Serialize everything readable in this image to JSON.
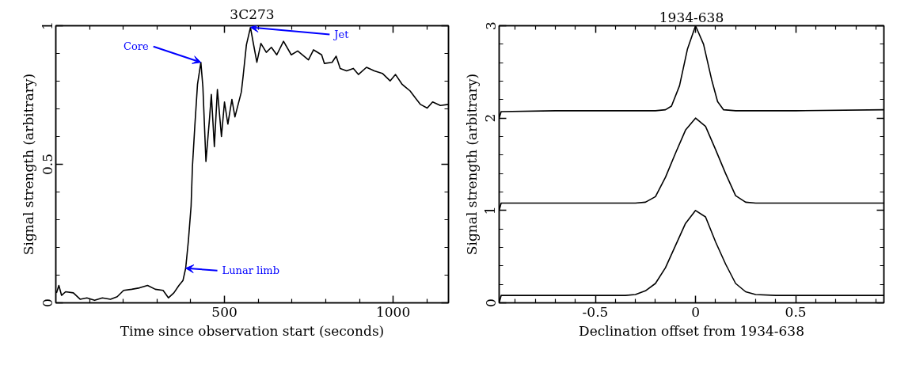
{
  "chart_data": [
    {
      "type": "line",
      "title": "3C273",
      "xlabel": "Time since observation start (seconds)",
      "ylabel": "Signal strength (arbitrary)",
      "x": [
        2,
        9,
        17,
        29,
        52,
        72,
        92,
        115,
        138,
        162,
        182,
        201,
        225,
        248,
        272,
        295,
        318,
        334,
        350,
        365,
        377,
        385,
        393,
        401,
        405,
        412,
        420,
        430,
        436,
        445,
        456,
        461,
        470,
        479,
        491,
        500,
        510,
        522,
        531,
        550,
        555,
        565,
        577,
        585,
        596,
        608,
        624,
        639,
        655,
        675,
        698,
        717,
        749,
        764,
        788,
        796,
        819,
        831,
        843,
        862,
        882,
        897,
        921,
        944,
        968,
        991,
        1007,
        1027,
        1050,
        1066,
        1081,
        1101,
        1117,
        1140,
        1163
      ],
      "values": [
        0.036,
        0.063,
        0.027,
        0.04,
        0.036,
        0.013,
        0.018,
        0.009,
        0.018,
        0.013,
        0.022,
        0.045,
        0.049,
        0.054,
        0.063,
        0.049,
        0.045,
        0.018,
        0.036,
        0.063,
        0.081,
        0.125,
        0.224,
        0.349,
        0.492,
        0.636,
        0.788,
        0.868,
        0.779,
        0.51,
        0.671,
        0.752,
        0.564,
        0.77,
        0.6,
        0.725,
        0.645,
        0.734,
        0.671,
        0.761,
        0.815,
        0.931,
        0.994,
        0.94,
        0.868,
        0.936,
        0.904,
        0.922,
        0.895,
        0.944,
        0.895,
        0.909,
        0.877,
        0.913,
        0.895,
        0.864,
        0.868,
        0.89,
        0.846,
        0.837,
        0.846,
        0.824,
        0.85,
        0.837,
        0.828,
        0.801,
        0.824,
        0.788,
        0.765,
        0.739,
        0.716,
        0.703,
        0.725,
        0.712,
        0.716
      ],
      "color": "#000000",
      "xlim": [
        0,
        1164
      ],
      "ylim": [
        0,
        1
      ],
      "xticks": [
        {
          "value": 100,
          "label": null
        },
        {
          "value": 200,
          "label": null
        },
        {
          "value": 300,
          "label": null
        },
        {
          "value": 400,
          "label": null
        },
        500,
        {
          "value": 600,
          "label": null
        },
        {
          "value": 700,
          "label": null
        },
        {
          "value": 800,
          "label": null
        },
        {
          "value": 900,
          "label": null
        },
        1000,
        {
          "value": 1100,
          "label": null
        }
      ],
      "yticks": [
        0,
        {
          "value": 0.1,
          "label": null
        },
        {
          "value": 0.2,
          "label": null
        },
        {
          "value": 0.3,
          "label": null
        },
        {
          "value": 0.4,
          "label": null
        },
        0.5,
        {
          "value": 0.6,
          "label": null
        },
        {
          "value": 0.7,
          "label": null
        },
        {
          "value": 0.8,
          "label": null
        },
        {
          "value": 0.9,
          "label": null
        },
        1
      ],
      "annotations": [
        {
          "text": "Core",
          "x": 430,
          "y": 0.868
        },
        {
          "text": "Jet",
          "x": 577,
          "y": 0.994
        },
        {
          "text": "Lunar limb",
          "x": 385,
          "y": 0.125
        }
      ]
    },
    {
      "type": "line",
      "title": "1934-638",
      "xlabel": "Declination offset from 1934-638",
      "ylabel": "Signal strength (arbitrary)",
      "series": [
        {
          "color": "#000000",
          "x": [
            -0.98,
            -0.97,
            -0.9,
            -0.7,
            -0.5,
            -0.35,
            -0.3,
            -0.25,
            -0.2,
            -0.15,
            -0.1,
            -0.05,
            0,
            0.05,
            0.1,
            0.15,
            0.2,
            0.25,
            0.3,
            0.4,
            0.6,
            0.8,
            0.94
          ],
          "values": [
            0,
            0.08,
            0.08,
            0.08,
            0.08,
            0.08,
            0.09,
            0.13,
            0.21,
            0.38,
            0.62,
            0.86,
            1.0,
            0.93,
            0.66,
            0.42,
            0.21,
            0.12,
            0.09,
            0.08,
            0.08,
            0.08,
            0.08
          ]
        },
        {
          "color": "#000000",
          "x": [
            -0.98,
            -0.97,
            -0.7,
            -0.5,
            -0.3,
            -0.25,
            -0.2,
            -0.15,
            -0.1,
            -0.05,
            0,
            0.05,
            0.1,
            0.15,
            0.2,
            0.25,
            0.3,
            0.5,
            0.7,
            0.94
          ],
          "values": [
            1.0,
            1.08,
            1.08,
            1.08,
            1.08,
            1.09,
            1.15,
            1.36,
            1.62,
            1.87,
            2.0,
            1.91,
            1.66,
            1.4,
            1.16,
            1.09,
            1.08,
            1.08,
            1.08,
            1.08
          ]
        },
        {
          "color": "#000000",
          "x": [
            -0.98,
            -0.97,
            -0.7,
            -0.4,
            -0.2,
            -0.15,
            -0.12,
            -0.08,
            -0.04,
            0,
            0.04,
            0.08,
            0.11,
            0.14,
            0.2,
            0.5,
            0.94
          ],
          "values": [
            2.0,
            2.07,
            2.08,
            2.08,
            2.08,
            2.09,
            2.13,
            2.35,
            2.75,
            3.0,
            2.8,
            2.42,
            2.18,
            2.09,
            2.08,
            2.08,
            2.09
          ]
        }
      ],
      "xlim": [
        -0.98,
        0.94
      ],
      "ylim": [
        0,
        3
      ],
      "xticks": [
        {
          "value": -0.9,
          "label": null
        },
        {
          "value": -0.8,
          "label": null
        },
        {
          "value": -0.7,
          "label": null
        },
        {
          "value": -0.6,
          "label": null
        },
        -0.5,
        {
          "value": -0.4,
          "label": null
        },
        {
          "value": -0.3,
          "label": null
        },
        {
          "value": -0.2,
          "label": null
        },
        {
          "value": -0.1,
          "label": null
        },
        0,
        {
          "value": 0.1,
          "label": null
        },
        {
          "value": 0.2,
          "label": null
        },
        {
          "value": 0.3,
          "label": null
        },
        {
          "value": 0.4,
          "label": null
        },
        0.5,
        {
          "value": 0.6,
          "label": null
        },
        {
          "value": 0.7,
          "label": null
        },
        {
          "value": 0.8,
          "label": null
        },
        {
          "value": 0.9,
          "label": null
        }
      ],
      "yticks": [
        0,
        {
          "value": 0.2,
          "label": null
        },
        {
          "value": 0.4,
          "label": null
        },
        {
          "value": 0.6,
          "label": null
        },
        {
          "value": 0.8,
          "label": null
        },
        1,
        {
          "value": 1.2,
          "label": null
        },
        {
          "value": 1.4,
          "label": null
        },
        {
          "value": 1.6,
          "label": null
        },
        {
          "value": 1.8,
          "label": null
        },
        2,
        {
          "value": 2.2,
          "label": null
        },
        {
          "value": 2.4,
          "label": null
        },
        {
          "value": 2.6,
          "label": null
        },
        {
          "value": 2.8,
          "label": null
        },
        3
      ]
    }
  ]
}
